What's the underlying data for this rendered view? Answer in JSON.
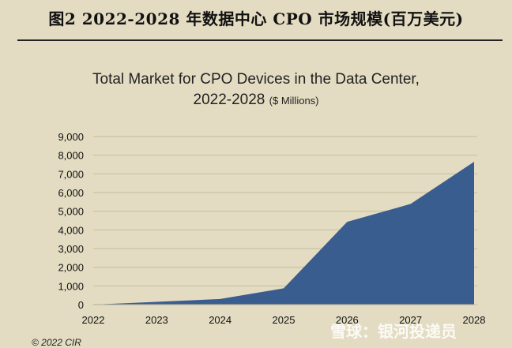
{
  "figure_title": "图2  2022-2028 年数据中心 CPO 市场规模(百万美元)",
  "copyright": "© 2022 CIR",
  "watermark": "雪球：银河投递员",
  "chart_data": {
    "type": "area",
    "title_line1": "Total Market for CPO Devices in the Data Center,",
    "title_line2": "2022-2028",
    "unit_label": "($ Millions)",
    "categories": [
      "2022",
      "2023",
      "2024",
      "2025",
      "2026",
      "2027",
      "2028"
    ],
    "values": [
      0,
      150,
      300,
      870,
      4430,
      5390,
      7650
    ],
    "ylim": [
      0,
      9000
    ],
    "yticks": [
      "0",
      "1,000",
      "2,000",
      "3,000",
      "4,000",
      "5,000",
      "6,000",
      "7,000",
      "8,000",
      "9,000"
    ],
    "grid": true,
    "fill_color": "#3a5d8f",
    "background_color": "#e3dcc2"
  }
}
